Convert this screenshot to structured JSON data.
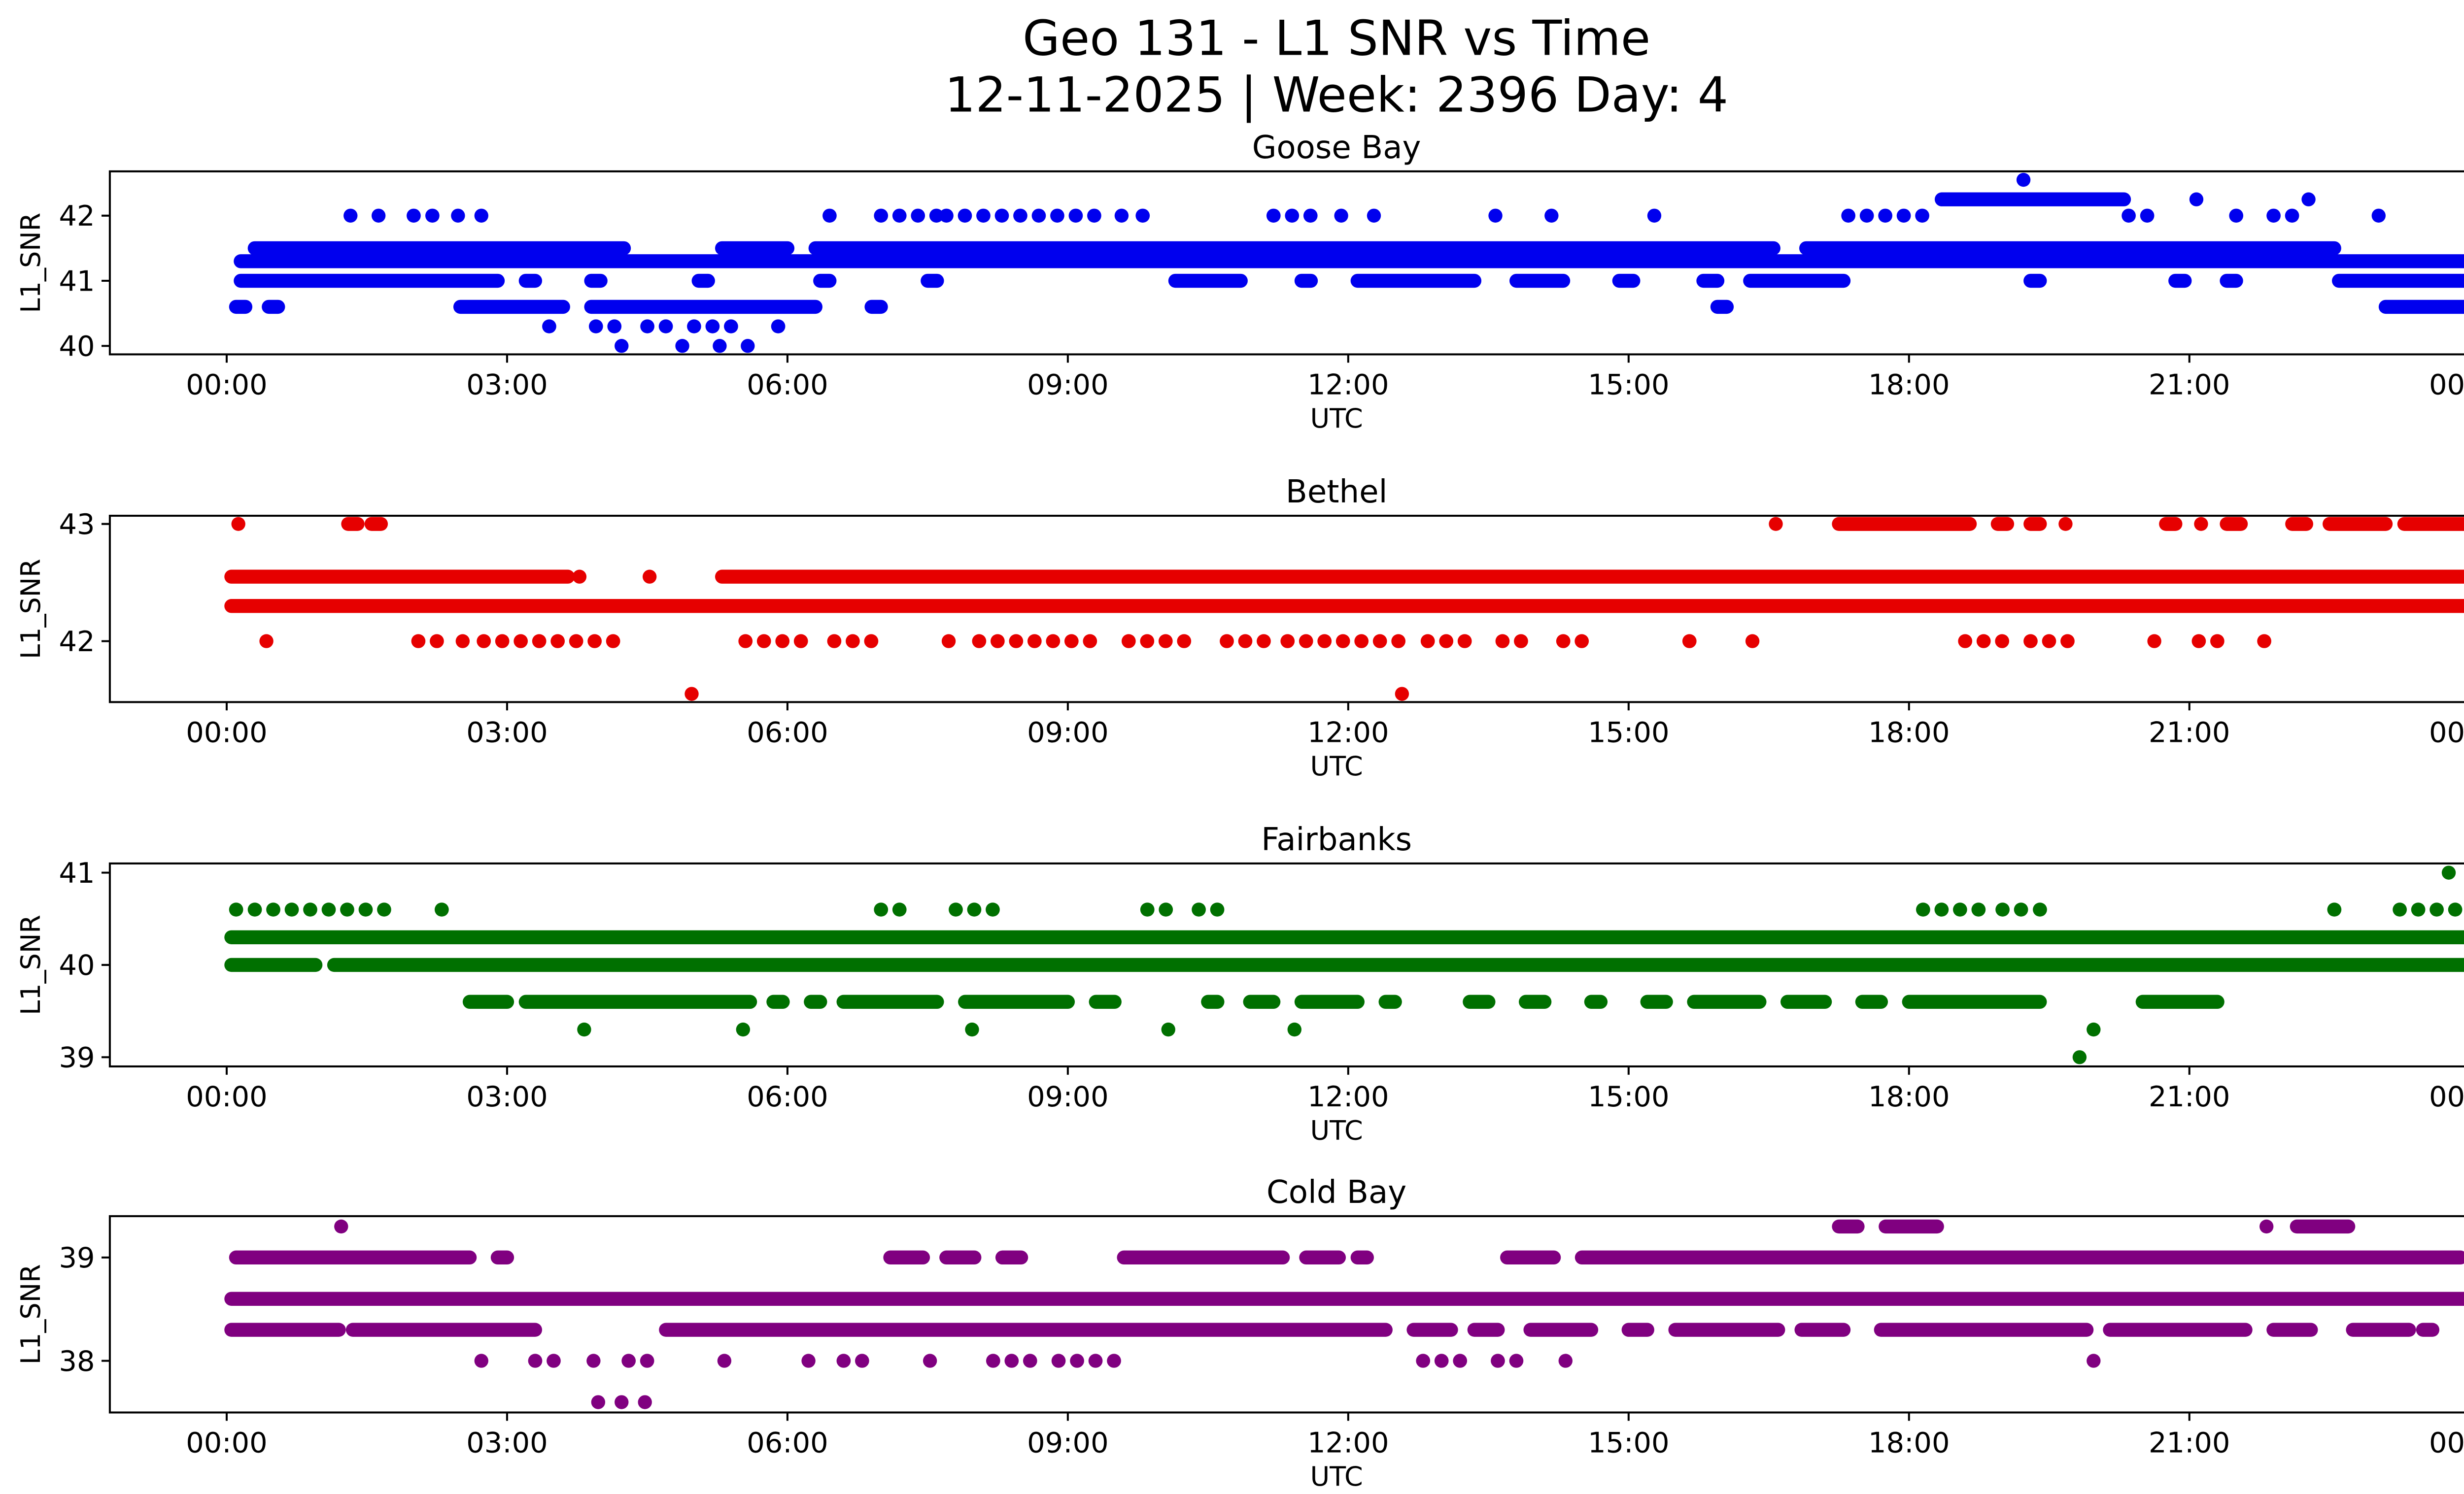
{
  "figure": {
    "title_line1": "Geo 131 - L1 SNR vs Time",
    "title_line2": "12-11-2025 | Week: 2396 Day: 4"
  },
  "chart_data": [
    {
      "type": "scatter",
      "title": "Goose Bay",
      "color": "#0000ee",
      "xlabel": "UTC",
      "ylabel": "L1_SNR",
      "xlim": [
        -1.25,
        25.0
      ],
      "ylim": [
        39.87,
        42.68
      ],
      "yticks": [
        40,
        41,
        42
      ],
      "xticks": [
        0,
        3,
        6,
        9,
        12,
        15,
        18,
        21,
        24
      ],
      "xtick_labels": [
        "00:00",
        "03:00",
        "06:00",
        "09:00",
        "12:00",
        "15:00",
        "18:00",
        "21:00",
        "00:00"
      ],
      "marker_diameter_px": 8.4,
      "bands": [
        {
          "y": 42.55,
          "style": "solid",
          "segments": [
            [
              19.2,
              19.25
            ]
          ]
        },
        {
          "y": 42.25,
          "style": "solid",
          "segments": [
            [
              18.35,
              20.3
            ],
            [
              21.05,
              21.1
            ],
            [
              22.25,
              22.3
            ]
          ]
        },
        {
          "y": 42.0,
          "style": "dots",
          "segments": [
            [
              1.3,
              1.35
            ],
            [
              1.6,
              1.65
            ],
            [
              2.0,
              2.1
            ],
            [
              2.2,
              2.3
            ],
            [
              2.45,
              2.5
            ],
            [
              2.7,
              2.75
            ],
            [
              6.45,
              6.55
            ],
            [
              7.0,
              7.6
            ],
            [
              7.7,
              9.35
            ],
            [
              9.55,
              9.6
            ],
            [
              9.8,
              9.9
            ],
            [
              11.2,
              11.65
            ],
            [
              11.9,
              11.95
            ],
            [
              12.25,
              12.3
            ],
            [
              13.55,
              13.6
            ],
            [
              14.15,
              14.2
            ],
            [
              15.25,
              15.3
            ],
            [
              17.35,
              18.3
            ],
            [
              20.35,
              20.6
            ],
            [
              21.5,
              21.6
            ],
            [
              21.9,
              22.1
            ],
            [
              23.0,
              23.05
            ]
          ]
        },
        {
          "y": 41.5,
          "style": "solid",
          "segments": [
            [
              0.3,
              4.25
            ],
            [
              5.3,
              6.0
            ],
            [
              6.3,
              16.55
            ],
            [
              16.9,
              22.55
            ]
          ]
        },
        {
          "y": 41.3,
          "style": "solid",
          "segments": [
            [
              0.15,
              23.95
            ]
          ]
        },
        {
          "y": 41.0,
          "style": "solid",
          "segments": [
            [
              0.15,
              2.9
            ],
            [
              3.2,
              3.3
            ],
            [
              3.9,
              4.0
            ],
            [
              5.05,
              5.15
            ],
            [
              6.35,
              6.45
            ],
            [
              7.5,
              7.6
            ],
            [
              10.15,
              10.85
            ],
            [
              11.5,
              11.6
            ],
            [
              12.1,
              13.35
            ],
            [
              13.8,
              14.3
            ],
            [
              14.9,
              15.05
            ],
            [
              15.8,
              15.95
            ],
            [
              16.3,
              17.3
            ],
            [
              19.3,
              19.4
            ],
            [
              20.85,
              20.95
            ],
            [
              21.4,
              21.5
            ],
            [
              22.6,
              23.95
            ]
          ]
        },
        {
          "y": 40.6,
          "style": "solid",
          "segments": [
            [
              0.1,
              0.2
            ],
            [
              0.45,
              0.55
            ],
            [
              2.5,
              3.6
            ],
            [
              3.9,
              6.3
            ],
            [
              6.9,
              7.0
            ],
            [
              15.95,
              16.05
            ],
            [
              23.1,
              23.95
            ]
          ]
        },
        {
          "y": 40.3,
          "style": "dots",
          "segments": [
            [
              3.45,
              3.55
            ],
            [
              3.95,
              4.15
            ],
            [
              4.5,
              4.7
            ],
            [
              5.0,
              5.5
            ],
            [
              5.9,
              6.0
            ]
          ]
        },
        {
          "y": 40.0,
          "style": "dots",
          "segments": [
            [
              4.2,
              4.25
            ],
            [
              4.85,
              4.9
            ],
            [
              5.25,
              5.3
            ],
            [
              5.55,
              5.6
            ]
          ]
        }
      ]
    },
    {
      "type": "scatter",
      "title": "Bethel",
      "color": "#e60000",
      "xlabel": "UTC",
      "ylabel": "L1_SNR",
      "xlim": [
        -1.25,
        25.0
      ],
      "ylim": [
        41.48,
        43.07
      ],
      "yticks": [
        42,
        43
      ],
      "xticks": [
        0,
        3,
        6,
        9,
        12,
        15,
        18,
        21,
        24
      ],
      "xtick_labels": [
        "00:00",
        "03:00",
        "06:00",
        "09:00",
        "12:00",
        "15:00",
        "18:00",
        "21:00",
        "00:00"
      ],
      "marker_diameter_px": 8.4,
      "bands": [
        {
          "y": 43.0,
          "style": "solid",
          "segments": [
            [
              0.1,
              0.15
            ],
            [
              1.3,
              1.4
            ],
            [
              1.55,
              1.65
            ],
            [
              16.55,
              16.6
            ],
            [
              17.25,
              18.65
            ],
            [
              18.95,
              19.05
            ],
            [
              19.3,
              19.4
            ],
            [
              19.65,
              19.7
            ],
            [
              20.75,
              20.85
            ],
            [
              21.1,
              21.15
            ],
            [
              21.4,
              21.55
            ],
            [
              22.1,
              22.25
            ],
            [
              22.5,
              23.1
            ],
            [
              23.3,
              23.95
            ]
          ]
        },
        {
          "y": 42.55,
          "style": "solid",
          "segments": [
            [
              0.05,
              3.65
            ],
            [
              3.75,
              3.8
            ],
            [
              4.5,
              4.55
            ],
            [
              5.3,
              23.95
            ]
          ]
        },
        {
          "y": 42.3,
          "style": "solid",
          "segments": [
            [
              0.05,
              23.95
            ]
          ]
        },
        {
          "y": 42.0,
          "style": "dots",
          "segments": [
            [
              0.4,
              0.45
            ],
            [
              2.05,
              2.25
            ],
            [
              2.5,
              2.55
            ],
            [
              2.75,
              4.25
            ],
            [
              5.55,
              6.2
            ],
            [
              6.5,
              6.9
            ],
            [
              7.7,
              7.75
            ],
            [
              8.05,
              9.4
            ],
            [
              9.65,
              10.4
            ],
            [
              10.7,
              11.1
            ],
            [
              11.35,
              12.55
            ],
            [
              12.85,
              13.3
            ],
            [
              13.65,
              13.9
            ],
            [
              14.3,
              14.5
            ],
            [
              15.65,
              15.75
            ],
            [
              16.3,
              16.35
            ],
            [
              18.6,
              19.0
            ],
            [
              19.3,
              19.8
            ],
            [
              20.6,
              20.65
            ],
            [
              21.1,
              21.3
            ],
            [
              21.8,
              21.9
            ]
          ]
        },
        {
          "y": 41.55,
          "style": "dots",
          "segments": [
            [
              4.95,
              5.0
            ],
            [
              12.55,
              12.6
            ]
          ]
        }
      ]
    },
    {
      "type": "scatter",
      "title": "Fairbanks",
      "color": "#007000",
      "xlabel": "UTC",
      "ylabel": "L1_SNR",
      "xlim": [
        -1.25,
        25.0
      ],
      "ylim": [
        38.9,
        41.1
      ],
      "yticks": [
        39,
        40,
        41
      ],
      "xticks": [
        0,
        3,
        6,
        9,
        12,
        15,
        18,
        21,
        24
      ],
      "xtick_labels": [
        "00:00",
        "03:00",
        "06:00",
        "09:00",
        "12:00",
        "15:00",
        "18:00",
        "21:00",
        "00:00"
      ],
      "marker_diameter_px": 8.4,
      "bands": [
        {
          "y": 41.0,
          "style": "dots",
          "segments": [
            [
              23.75,
              23.8
            ]
          ]
        },
        {
          "y": 40.6,
          "style": "dots",
          "segments": [
            [
              0.1,
              0.2
            ],
            [
              0.3,
              1.75
            ],
            [
              2.3,
              2.4
            ],
            [
              7.0,
              7.3
            ],
            [
              7.8,
              8.2
            ],
            [
              9.85,
              10.2
            ],
            [
              10.4,
              10.75
            ],
            [
              18.15,
              18.8
            ],
            [
              19.0,
              19.2
            ],
            [
              19.4,
              19.5
            ],
            [
              22.55,
              22.65
            ],
            [
              23.25,
              23.9
            ]
          ]
        },
        {
          "y": 40.3,
          "style": "solid",
          "segments": [
            [
              0.05,
              23.95
            ]
          ]
        },
        {
          "y": 40.0,
          "style": "solid",
          "segments": [
            [
              0.05,
              0.95
            ],
            [
              1.15,
              23.95
            ]
          ]
        },
        {
          "y": 39.6,
          "style": "solid",
          "segments": [
            [
              2.6,
              3.0
            ],
            [
              3.2,
              5.6
            ],
            [
              5.85,
              5.95
            ],
            [
              6.25,
              6.35
            ],
            [
              6.6,
              7.6
            ],
            [
              7.9,
              9.0
            ],
            [
              9.3,
              9.5
            ],
            [
              10.5,
              10.6
            ],
            [
              10.95,
              11.2
            ],
            [
              11.5,
              12.1
            ],
            [
              12.4,
              12.5
            ],
            [
              13.3,
              13.5
            ],
            [
              13.9,
              14.1
            ],
            [
              14.6,
              14.7
            ],
            [
              15.2,
              15.4
            ],
            [
              15.7,
              16.4
            ],
            [
              16.7,
              17.1
            ],
            [
              17.5,
              17.7
            ],
            [
              18.0,
              19.4
            ],
            [
              20.5,
              21.3
            ]
          ]
        },
        {
          "y": 39.3,
          "style": "dots",
          "segments": [
            [
              3.8,
              3.85
            ],
            [
              5.5,
              5.55
            ],
            [
              7.95,
              8.0
            ],
            [
              10.05,
              10.1
            ],
            [
              11.4,
              11.45
            ],
            [
              19.95,
              20.0
            ]
          ]
        },
        {
          "y": 39.0,
          "style": "dots",
          "segments": [
            [
              19.8,
              19.85
            ]
          ]
        }
      ]
    },
    {
      "type": "scatter",
      "title": "Cold Bay",
      "color": "#800080",
      "xlabel": "UTC",
      "ylabel": "L1_SNR",
      "xlim": [
        -1.25,
        25.0
      ],
      "ylim": [
        37.5,
        39.4
      ],
      "yticks": [
        38,
        39
      ],
      "xticks": [
        0,
        3,
        6,
        9,
        12,
        15,
        18,
        21,
        24
      ],
      "xtick_labels": [
        "00:00",
        "03:00",
        "06:00",
        "09:00",
        "12:00",
        "15:00",
        "18:00",
        "21:00",
        "00:00"
      ],
      "marker_diameter_px": 8.4,
      "bands": [
        {
          "y": 39.3,
          "style": "solid",
          "segments": [
            [
              1.2,
              1.25
            ],
            [
              17.25,
              17.45
            ],
            [
              17.75,
              18.3
            ],
            [
              21.8,
              21.85
            ],
            [
              22.15,
              22.7
            ]
          ]
        },
        {
          "y": 39.0,
          "style": "solid",
          "segments": [
            [
              0.1,
              2.6
            ],
            [
              2.9,
              3.0
            ],
            [
              7.1,
              7.45
            ],
            [
              7.7,
              8.0
            ],
            [
              8.3,
              8.5
            ],
            [
              9.6,
              11.3
            ],
            [
              11.55,
              11.9
            ],
            [
              12.1,
              12.2
            ],
            [
              13.7,
              14.2
            ],
            [
              14.5,
              23.9
            ]
          ]
        },
        {
          "y": 38.6,
          "style": "solid",
          "segments": [
            [
              0.05,
              23.95
            ]
          ]
        },
        {
          "y": 38.3,
          "style": "solid",
          "segments": [
            [
              0.05,
              1.2
            ],
            [
              1.35,
              3.3
            ],
            [
              4.7,
              12.4
            ],
            [
              12.7,
              13.1
            ],
            [
              13.35,
              13.6
            ],
            [
              13.95,
              14.6
            ],
            [
              15.0,
              15.2
            ],
            [
              15.5,
              16.6
            ],
            [
              16.85,
              17.3
            ],
            [
              17.7,
              19.9
            ],
            [
              20.15,
              21.6
            ],
            [
              21.9,
              22.3
            ],
            [
              22.75,
              23.35
            ],
            [
              23.5,
              23.6
            ]
          ]
        },
        {
          "y": 38.0,
          "style": "dots",
          "segments": [
            [
              2.7,
              2.75
            ],
            [
              3.3,
              3.5
            ],
            [
              3.9,
              3.95
            ],
            [
              4.3,
              4.6
            ],
            [
              5.3,
              5.35
            ],
            [
              6.2,
              6.25
            ],
            [
              6.6,
              6.8
            ],
            [
              7.5,
              7.55
            ],
            [
              8.2,
              8.6
            ],
            [
              8.9,
              9.6
            ],
            [
              12.8,
              13.3
            ],
            [
              13.6,
              13.8
            ],
            [
              14.3,
              14.35
            ],
            [
              19.95,
              20.0
            ]
          ]
        },
        {
          "y": 37.6,
          "style": "dots",
          "segments": [
            [
              3.95,
              4.0
            ],
            [
              4.2,
              4.25
            ],
            [
              4.45,
              4.5
            ]
          ]
        }
      ]
    }
  ]
}
